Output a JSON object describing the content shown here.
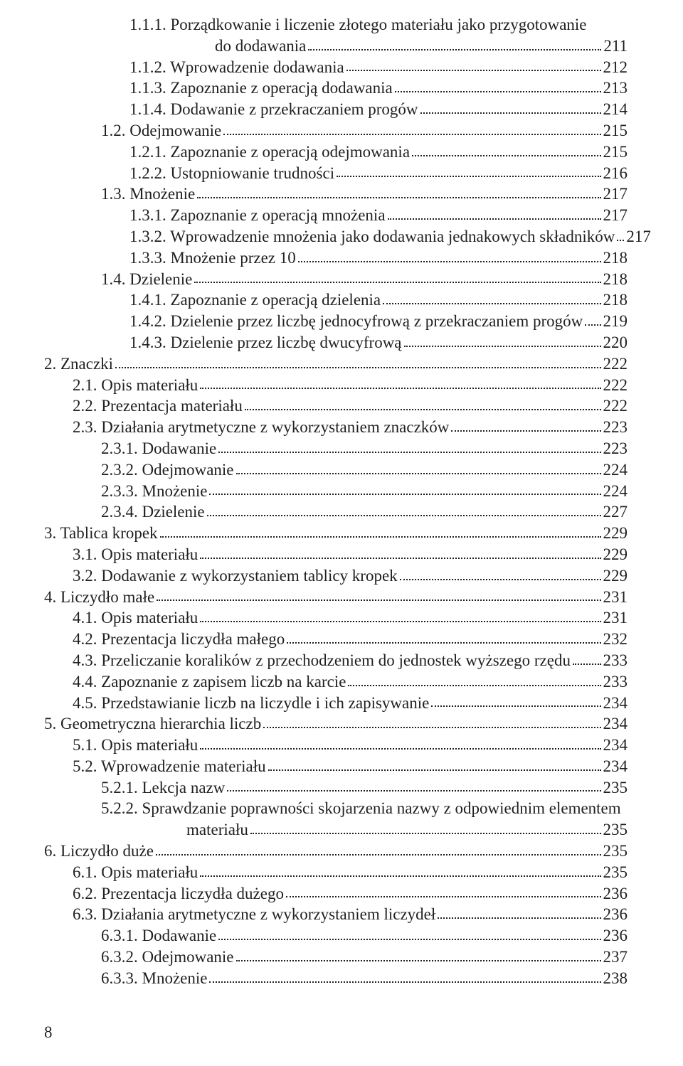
{
  "styles": {
    "fontFamily": "Minion Pro, Georgia, serif",
    "fontSize": 23,
    "lineHeight": 29.8,
    "textColor": "#231f20",
    "backgroundColor": "#ffffff",
    "dotColor": "#231f20",
    "indentStep": 40,
    "extraIndent": 120
  },
  "pageNumber": "8",
  "entries": [
    {
      "indent": 3,
      "label": "1.1.1. Porządkowanie i liczenie złotego materiału jako przygotowanie",
      "page": null,
      "continuation": true
    },
    {
      "indent": 3,
      "label": "do dodawania",
      "page": "211",
      "extraIndent": true
    },
    {
      "indent": 3,
      "label": "1.1.2. Wprowadzenie dodawania",
      "page": "212"
    },
    {
      "indent": 3,
      "label": "1.1.3. Zapoznanie z operacją dodawania",
      "page": "213"
    },
    {
      "indent": 3,
      "label": "1.1.4. Dodawanie z przekraczaniem progów",
      "page": "214"
    },
    {
      "indent": 2,
      "label": "1.2. Odejmowanie",
      "page": "215"
    },
    {
      "indent": 3,
      "label": "1.2.1. Zapoznanie z operacją odejmowania",
      "page": "215"
    },
    {
      "indent": 3,
      "label": "1.2.2. Ustopniowanie trudności",
      "page": "216"
    },
    {
      "indent": 2,
      "label": "1.3. Mnożenie",
      "page": "217"
    },
    {
      "indent": 3,
      "label": "1.3.1. Zapoznanie z operacją mnożenia",
      "page": "217"
    },
    {
      "indent": 3,
      "label": "1.3.2. Wprowadzenie mnożenia jako dodawania jednakowych składników",
      "page": "217"
    },
    {
      "indent": 3,
      "label": "1.3.3. Mnożenie przez 10",
      "page": "218"
    },
    {
      "indent": 2,
      "label": "1.4. Dzielenie",
      "page": "218"
    },
    {
      "indent": 3,
      "label": "1.4.1. Zapoznanie z operacją dzielenia",
      "page": "218"
    },
    {
      "indent": 3,
      "label": "1.4.2. Dzielenie przez liczbę jednocyfrową z przekraczaniem progów",
      "page": "219"
    },
    {
      "indent": 3,
      "label": "1.4.3. Dzielenie przez liczbę dwucyfrową",
      "page": "220"
    },
    {
      "indent": 0,
      "label": "2. Znaczki",
      "page": "222"
    },
    {
      "indent": 1,
      "label": "2.1. Opis materiału",
      "page": "222"
    },
    {
      "indent": 1,
      "label": "2.2. Prezentacja materiału",
      "page": "222"
    },
    {
      "indent": 1,
      "label": "2.3. Działania arytmetyczne z wykorzystaniem znaczków",
      "page": "223"
    },
    {
      "indent": 2,
      "label": "2.3.1. Dodawanie",
      "page": "223"
    },
    {
      "indent": 2,
      "label": "2.3.2. Odejmowanie",
      "page": "224"
    },
    {
      "indent": 2,
      "label": "2.3.3. Mnożenie",
      "page": "224"
    },
    {
      "indent": 2,
      "label": "2.3.4. Dzielenie",
      "page": "227"
    },
    {
      "indent": 0,
      "label": "3. Tablica kropek",
      "page": "229"
    },
    {
      "indent": 1,
      "label": "3.1. Opis materiału",
      "page": "229"
    },
    {
      "indent": 1,
      "label": "3.2. Dodawanie z wykorzystaniem tablicy kropek",
      "page": "229"
    },
    {
      "indent": 0,
      "label": "4. Liczydło małe",
      "page": "231"
    },
    {
      "indent": 1,
      "label": "4.1. Opis materiału",
      "page": "231"
    },
    {
      "indent": 1,
      "label": "4.2. Prezentacja liczydła małego",
      "page": "232"
    },
    {
      "indent": 1,
      "label": "4.3. Przeliczanie koralików z przechodzeniem do jednostek wyższego rzędu",
      "page": "233"
    },
    {
      "indent": 1,
      "label": "4.4. Zapoznanie z zapisem liczb na karcie",
      "page": "233"
    },
    {
      "indent": 1,
      "label": "4.5. Przedstawianie liczb na liczydle i ich zapisywanie",
      "page": "234"
    },
    {
      "indent": 0,
      "label": "5. Geometryczna hierarchia liczb",
      "page": "234"
    },
    {
      "indent": 1,
      "label": "5.1. Opis materiału",
      "page": "234"
    },
    {
      "indent": 1,
      "label": "5.2. Wprowadzenie materiału",
      "page": "234"
    },
    {
      "indent": 2,
      "label": "5.2.1. Lekcja nazw",
      "page": "235"
    },
    {
      "indent": 2,
      "label": "5.2.2. Sprawdzanie poprawności skojarzenia nazwy z odpowiednim elementem",
      "page": null,
      "continuation": true
    },
    {
      "indent": 2,
      "label": "materiału",
      "page": "235",
      "extraIndent": true
    },
    {
      "indent": 0,
      "label": "6. Liczydło duże",
      "page": "235"
    },
    {
      "indent": 1,
      "label": "6.1. Opis materiału",
      "page": "235"
    },
    {
      "indent": 1,
      "label": "6.2. Prezentacja liczydła dużego",
      "page": "236"
    },
    {
      "indent": 1,
      "label": "6.3. Działania arytmetyczne z wykorzystaniem liczydeł",
      "page": "236"
    },
    {
      "indent": 2,
      "label": "6.3.1. Dodawanie",
      "page": "236"
    },
    {
      "indent": 2,
      "label": "6.3.2. Odejmowanie",
      "page": "237"
    },
    {
      "indent": 2,
      "label": "6.3.3. Mnożenie",
      "page": "238"
    }
  ]
}
